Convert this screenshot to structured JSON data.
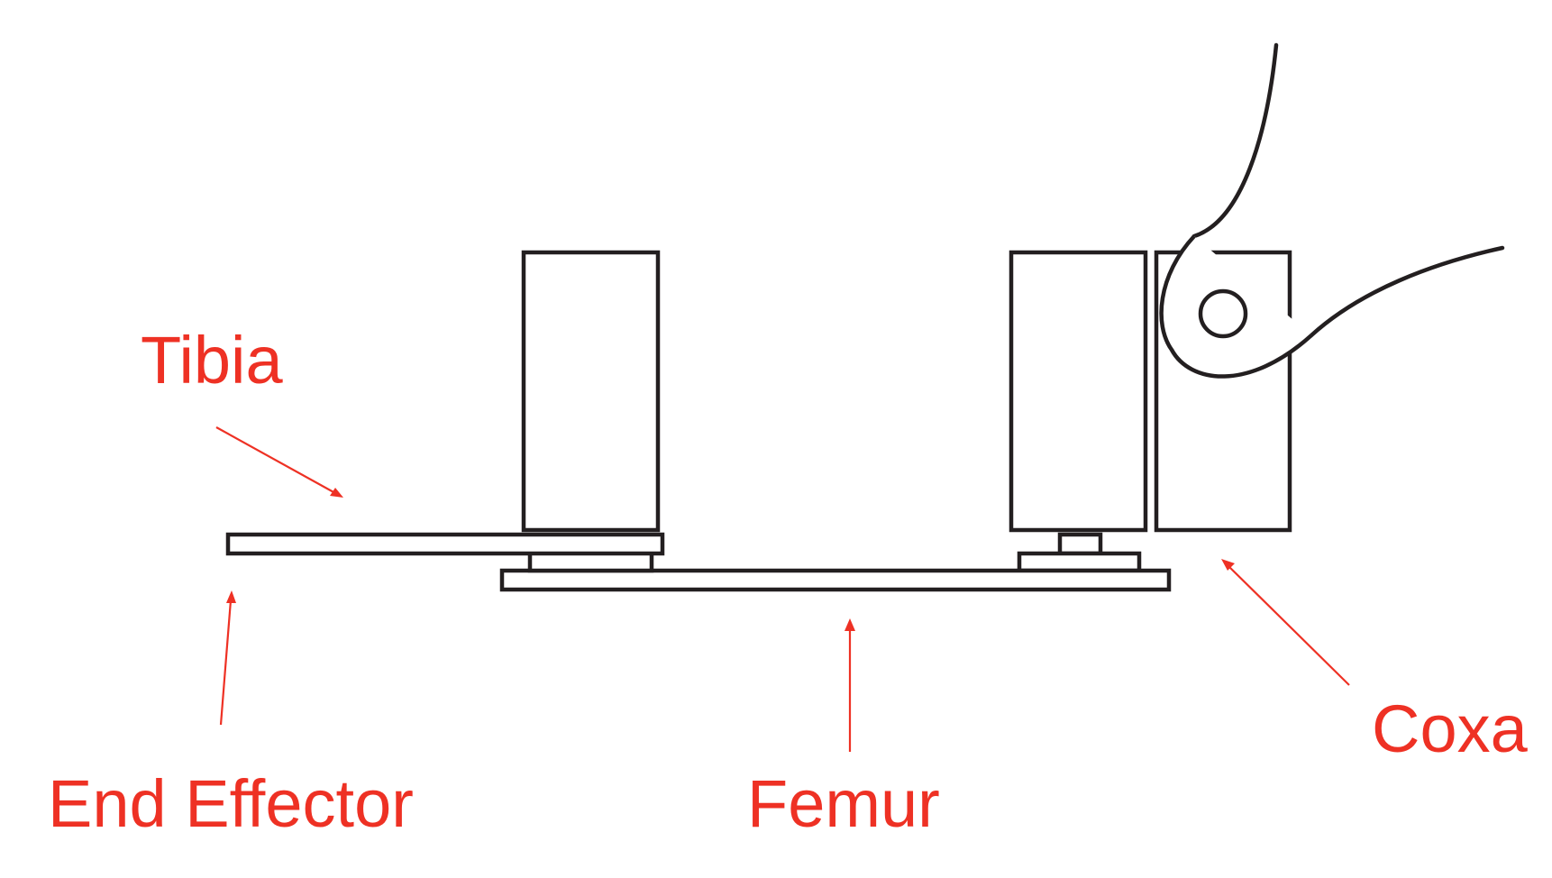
{
  "labels": {
    "tibia": "Tibia",
    "end_effector": "End Effector",
    "femur": "Femur",
    "coxa": "Coxa"
  },
  "colors": {
    "label": "#ee3124",
    "line": "#231f20",
    "background": "#ffffff"
  }
}
